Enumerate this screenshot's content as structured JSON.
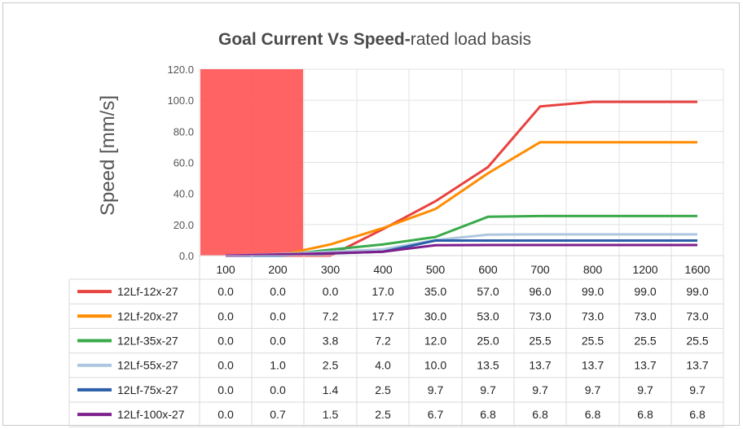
{
  "chart_data": {
    "type": "line",
    "title_bold": "Goal Current Vs Speed-",
    "title_rest": "rated load basis",
    "ylabel": "Speed [mm/s]",
    "xlabel": "",
    "ylim": [
      0,
      120
    ],
    "yticks": [
      "0.0",
      "20.0",
      "40.0",
      "60.0",
      "80.0",
      "100.0",
      "120.0"
    ],
    "ytick_values": [
      0,
      20,
      40,
      60,
      80,
      100,
      120
    ],
    "categories": [
      "100",
      "200",
      "300",
      "400",
      "500",
      "600",
      "700",
      "800",
      "1200",
      "1600"
    ],
    "highlight_region": {
      "from_category": "100",
      "to_category": "200",
      "color": "#ff5b5b"
    },
    "grid": true,
    "legend_placement": "table-left",
    "series": [
      {
        "name": "12Lf-12x-27",
        "color": "#e8423f",
        "values": [
          0.0,
          0.0,
          0.0,
          17.0,
          35.0,
          57.0,
          96.0,
          99.0,
          99.0,
          99.0
        ],
        "labels": [
          "0.0",
          "0.0",
          "0.0",
          "17.0",
          "35.0",
          "57.0",
          "96.0",
          "99.0",
          "99.0",
          "99.0"
        ]
      },
      {
        "name": "12Lf-20x-27",
        "color": "#ff8c00",
        "values": [
          0.0,
          0.0,
          7.2,
          17.7,
          30.0,
          53.0,
          73.0,
          73.0,
          73.0,
          73.0
        ],
        "labels": [
          "0.0",
          "0.0",
          "7.2",
          "17.7",
          "30.0",
          "53.0",
          "73.0",
          "73.0",
          "73.0",
          "73.0"
        ]
      },
      {
        "name": "12Lf-35x-27",
        "color": "#3aaa4a",
        "values": [
          0.0,
          0.0,
          3.8,
          7.2,
          12.0,
          25.0,
          25.5,
          25.5,
          25.5,
          25.5
        ],
        "labels": [
          "0.0",
          "0.0",
          "3.8",
          "7.2",
          "12.0",
          "25.0",
          "25.5",
          "25.5",
          "25.5",
          "25.5"
        ]
      },
      {
        "name": "12Lf-55x-27",
        "color": "#aec7e0",
        "values": [
          0.0,
          1.0,
          2.5,
          4.0,
          10.0,
          13.5,
          13.7,
          13.7,
          13.7,
          13.7
        ],
        "labels": [
          "0.0",
          "1.0",
          "2.5",
          "4.0",
          "10.0",
          "13.5",
          "13.7",
          "13.7",
          "13.7",
          "13.7"
        ]
      },
      {
        "name": "12Lf-75x-27",
        "color": "#2a5ea8",
        "values": [
          0.0,
          0.0,
          1.4,
          2.5,
          9.7,
          9.7,
          9.7,
          9.7,
          9.7,
          9.7
        ],
        "labels": [
          "0.0",
          "0.0",
          "1.4",
          "2.5",
          "9.7",
          "9.7",
          "9.7",
          "9.7",
          "9.7",
          "9.7"
        ]
      },
      {
        "name": "12Lf-100x-27",
        "color": "#7d1f8c",
        "values": [
          0.0,
          0.7,
          1.5,
          2.5,
          6.7,
          6.8,
          6.8,
          6.8,
          6.8,
          6.8
        ],
        "labels": [
          "0.0",
          "0.7",
          "1.5",
          "2.5",
          "6.7",
          "6.8",
          "6.8",
          "6.8",
          "6.8",
          "6.8"
        ]
      }
    ]
  }
}
